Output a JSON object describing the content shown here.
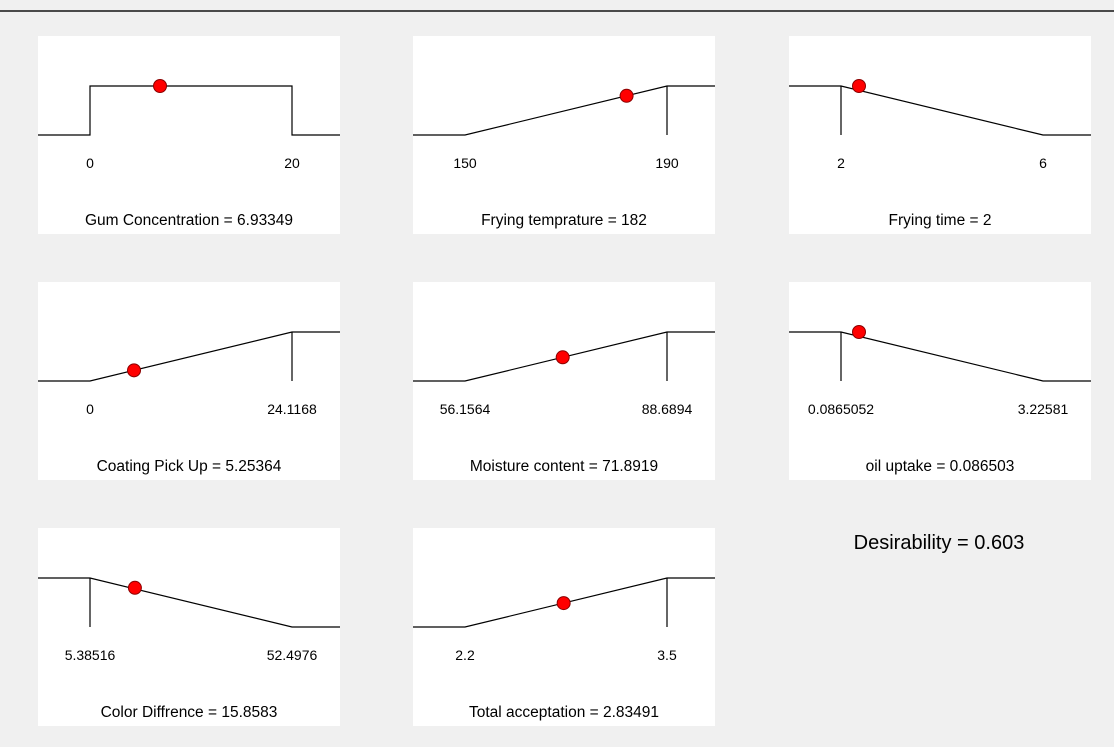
{
  "colors": {
    "background": "#f0f0f0",
    "panel": "#ffffff",
    "line": "#000000",
    "marker": "#ff0000",
    "marker_outline": "#8b0000"
  },
  "chart_data": [
    {
      "type": "line",
      "factor": "Gum Concentration",
      "title": "Gum Concentration = 6.93349",
      "tick_labels": [
        "0",
        "20"
      ],
      "x": [
        0,
        20
      ],
      "ramp": [
        1,
        1
      ],
      "current": {
        "x": 6.93349,
        "desirability": 1.0
      }
    },
    {
      "type": "line",
      "factor": "Frying temprature",
      "title": "Frying temprature = 182",
      "tick_labels": [
        "150",
        "190"
      ],
      "x": [
        150,
        190
      ],
      "ramp": [
        0,
        1
      ],
      "current": {
        "x": 182,
        "desirability": 0.8
      }
    },
    {
      "type": "line",
      "factor": "Frying time",
      "title": "Frying time = 2",
      "tick_labels": [
        "2",
        "6"
      ],
      "x": [
        2,
        6
      ],
      "ramp": [
        1,
        0
      ],
      "current": {
        "x": 2,
        "desirability": 1.0
      }
    },
    {
      "type": "line",
      "factor": "Coating Pick Up",
      "title": "Coating Pick Up = 5.25364",
      "tick_labels": [
        "0",
        "24.1168"
      ],
      "x": [
        0,
        24.1168
      ],
      "ramp": [
        0,
        1
      ],
      "current": {
        "x": 5.25364,
        "desirability": 0.218
      }
    },
    {
      "type": "line",
      "factor": "Moisture content",
      "title": "Moisture content = 71.8919",
      "tick_labels": [
        "56.1564",
        "88.6894"
      ],
      "x": [
        56.1564,
        88.6894
      ],
      "ramp": [
        0,
        1
      ],
      "current": {
        "x": 71.8919,
        "desirability": 0.484
      }
    },
    {
      "type": "line",
      "factor": "oil uptake",
      "title": "oil uptake = 0.086503",
      "tick_labels": [
        "0.0865052",
        "3.22581"
      ],
      "x": [
        0.0865052,
        3.22581
      ],
      "ramp": [
        1,
        0
      ],
      "current": {
        "x": 0.086503,
        "desirability": 1.0
      }
    },
    {
      "type": "line",
      "factor": "Color Diffrence",
      "title": "Color Diffrence = 15.8583",
      "tick_labels": [
        "5.38516",
        "52.4976"
      ],
      "x": [
        5.38516,
        52.4976
      ],
      "ramp": [
        1,
        0
      ],
      "current": {
        "x": 15.8583,
        "desirability": 0.8
      }
    },
    {
      "type": "line",
      "factor": "Total acceptation",
      "title": "Total acceptation = 2.83491",
      "tick_labels": [
        "2.2",
        "3.5"
      ],
      "x": [
        2.2,
        3.5
      ],
      "ramp": [
        0,
        1
      ],
      "current": {
        "x": 2.83491,
        "desirability": 0.488
      }
    }
  ],
  "desirability": {
    "label": "Desirability = 0.603",
    "value": 0.603
  }
}
